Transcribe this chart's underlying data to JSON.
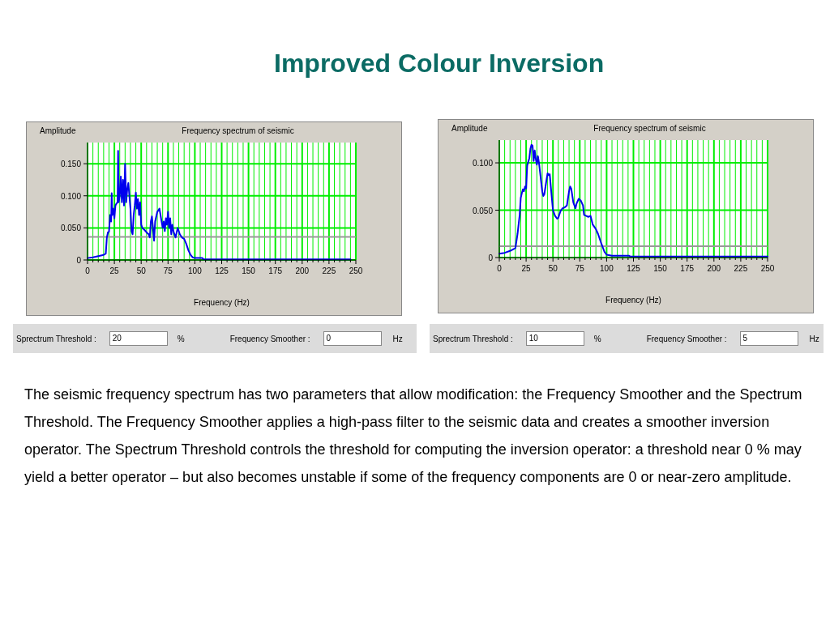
{
  "chart_data": [
    {
      "type": "line",
      "title": "Frequency spectrum of seismic",
      "ylabel": "Amplitude",
      "xlabel": "Frequency (Hz)",
      "grid": true,
      "xlim": [
        0,
        250
      ],
      "ylim": [
        0,
        0.183
      ],
      "xticks": [
        0,
        {
          "value": 5,
          "label": null
        },
        {
          "value": 10,
          "label": null
        },
        {
          "value": 15,
          "label": null
        },
        {
          "value": 20,
          "label": null
        },
        25,
        {
          "value": 30,
          "label": null
        },
        {
          "value": 35,
          "label": null
        },
        {
          "value": 40,
          "label": null
        },
        {
          "value": 45,
          "label": null
        },
        50,
        {
          "value": 55,
          "label": null
        },
        {
          "value": 60,
          "label": null
        },
        {
          "value": 65,
          "label": null
        },
        {
          "value": 70,
          "label": null
        },
        75,
        {
          "value": 80,
          "label": null
        },
        {
          "value": 85,
          "label": null
        },
        {
          "value": 90,
          "label": null
        },
        {
          "value": 95,
          "label": null
        },
        100,
        {
          "value": 105,
          "label": null
        },
        {
          "value": 110,
          "label": null
        },
        {
          "value": 115,
          "label": null
        },
        {
          "value": 120,
          "label": null
        },
        125,
        {
          "value": 130,
          "label": null
        },
        {
          "value": 135,
          "label": null
        },
        {
          "value": 140,
          "label": null
        },
        {
          "value": 145,
          "label": null
        },
        150,
        {
          "value": 155,
          "label": null
        },
        {
          "value": 160,
          "label": null
        },
        {
          "value": 165,
          "label": null
        },
        {
          "value": 170,
          "label": null
        },
        175,
        {
          "value": 180,
          "label": null
        },
        {
          "value": 185,
          "label": null
        },
        {
          "value": 190,
          "label": null
        },
        {
          "value": 195,
          "label": null
        },
        200,
        {
          "value": 205,
          "label": null
        },
        {
          "value": 210,
          "label": null
        },
        {
          "value": 215,
          "label": null
        },
        {
          "value": 220,
          "label": null
        },
        225,
        {
          "value": 230,
          "label": null
        },
        {
          "value": 235,
          "label": null
        },
        {
          "value": 240,
          "label": null
        },
        {
          "value": 245,
          "label": null
        },
        250
      ],
      "yticks": [
        0,
        {
          "value": 0.05,
          "label": "0.050"
        },
        {
          "value": 0.1,
          "label": "0.100"
        },
        {
          "value": 0.15,
          "label": "0.150"
        }
      ],
      "ref_lines": [
        {
          "axis": "y",
          "value": 0.036,
          "color": "#999999"
        }
      ],
      "series": [
        {
          "color": "#0000ee",
          "x": [
            0,
            5,
            10,
            15,
            17,
            18,
            19,
            20,
            21,
            22,
            22.5,
            23,
            24,
            25,
            26,
            27,
            28,
            28.5,
            29,
            30,
            31,
            32,
            33,
            34,
            35,
            36,
            37,
            38,
            39,
            40,
            41,
            42,
            43,
            44,
            45,
            46,
            47,
            48,
            49,
            50,
            51,
            53,
            55,
            57,
            58,
            59,
            60,
            61,
            62,
            63,
            65,
            67,
            69,
            70,
            71,
            72,
            73,
            74,
            75,
            76,
            77,
            78,
            79,
            80,
            82,
            84,
            86,
            88,
            90,
            92,
            94,
            96,
            98,
            100,
            107,
            108,
            150,
            200,
            245
          ],
          "values": [
            0.003,
            0.004,
            0.006,
            0.008,
            0.01,
            0.035,
            0.043,
            0.044,
            0.07,
            0.06,
            0.104,
            0.07,
            0.08,
            0.065,
            0.085,
            0.088,
            0.09,
            0.17,
            0.09,
            0.1,
            0.13,
            0.09,
            0.125,
            0.085,
            0.15,
            0.09,
            0.11,
            0.12,
            0.1,
            0.08,
            0.045,
            0.04,
            0.07,
            0.085,
            0.105,
            0.08,
            0.095,
            0.07,
            0.09,
            0.055,
            0.05,
            0.047,
            0.043,
            0.04,
            0.035,
            0.06,
            0.068,
            0.05,
            0.03,
            0.06,
            0.075,
            0.08,
            0.06,
            0.05,
            0.06,
            0.045,
            0.065,
            0.055,
            0.075,
            0.05,
            0.065,
            0.04,
            0.055,
            0.045,
            0.035,
            0.05,
            0.04,
            0.035,
            0.033,
            0.025,
            0.015,
            0.008,
            0.004,
            0.003,
            0.003,
            0.001,
            0.001,
            0.001,
            0.001
          ]
        }
      ],
      "annotations": [
        "Sprectrum Threshold :",
        "20",
        "%",
        "Frequency Smoother :",
        "0",
        "Hz",
        "Improved Colour Inversion",
        "The seismic frequency spectrum has two parameters that allow modification: the Frequency Smoother and the Spectrum Threshold.  The Frequency Smoother applies a high-pass filter to the seismic data and creates a smoother inversion operator.  The Spectrum Threshold controls the threshold for computing the inversion operator: a threshold near 0 % may yield a better operator – but also becomes unstable if some of the frequency components are 0 or near-zero amplitude."
      ]
    },
    {
      "type": "line",
      "title": "Frequency spectrum of seismic",
      "ylabel": "Amplitude",
      "xlabel": "Frequency (Hz)",
      "grid": true,
      "xlim": [
        0,
        250
      ],
      "ylim": [
        0,
        0.124
      ],
      "xticks": [
        0,
        {
          "value": 5,
          "label": null
        },
        {
          "value": 10,
          "label": null
        },
        {
          "value": 15,
          "label": null
        },
        {
          "value": 20,
          "label": null
        },
        25,
        {
          "value": 30,
          "label": null
        },
        {
          "value": 35,
          "label": null
        },
        {
          "value": 40,
          "label": null
        },
        {
          "value": 45,
          "label": null
        },
        50,
        {
          "value": 55,
          "label": null
        },
        {
          "value": 60,
          "label": null
        },
        {
          "value": 65,
          "label": null
        },
        {
          "value": 70,
          "label": null
        },
        75,
        {
          "value": 80,
          "label": null
        },
        {
          "value": 85,
          "label": null
        },
        {
          "value": 90,
          "label": null
        },
        {
          "value": 95,
          "label": null
        },
        100,
        {
          "value": 105,
          "label": null
        },
        {
          "value": 110,
          "label": null
        },
        {
          "value": 115,
          "label": null
        },
        {
          "value": 120,
          "label": null
        },
        125,
        {
          "value": 130,
          "label": null
        },
        {
          "value": 135,
          "label": null
        },
        {
          "value": 140,
          "label": null
        },
        {
          "value": 145,
          "label": null
        },
        150,
        {
          "value": 155,
          "label": null
        },
        {
          "value": 160,
          "label": null
        },
        {
          "value": 165,
          "label": null
        },
        {
          "value": 170,
          "label": null
        },
        175,
        {
          "value": 180,
          "label": null
        },
        {
          "value": 185,
          "label": null
        },
        {
          "value": 190,
          "label": null
        },
        {
          "value": 195,
          "label": null
        },
        200,
        {
          "value": 205,
          "label": null
        },
        {
          "value": 210,
          "label": null
        },
        {
          "value": 215,
          "label": null
        },
        {
          "value": 220,
          "label": null
        },
        225,
        {
          "value": 230,
          "label": null
        },
        {
          "value": 235,
          "label": null
        },
        {
          "value": 240,
          "label": null
        },
        {
          "value": 245,
          "label": null
        },
        250
      ],
      "yticks": [
        0,
        {
          "value": 0.05,
          "label": "0.050"
        },
        {
          "value": 0.1,
          "label": "0.100"
        }
      ],
      "ref_lines": [
        {
          "axis": "y",
          "value": 0.012,
          "color": "#999999"
        }
      ],
      "series": [
        {
          "color": "#0000ee",
          "x": [
            0,
            5,
            10,
            15,
            17,
            18,
            19,
            20,
            21,
            22,
            23,
            24,
            25,
            26,
            28,
            29,
            30,
            31,
            32,
            33,
            34,
            35,
            36,
            37,
            38,
            40,
            41,
            42,
            44,
            45,
            46,
            47,
            48,
            50,
            52,
            54,
            55,
            57,
            59,
            61,
            63,
            65,
            66,
            67,
            69,
            71,
            72,
            74,
            76,
            78,
            79,
            81,
            83,
            85,
            87,
            90,
            92,
            95,
            98,
            100,
            105,
            110,
            121,
            122,
            150,
            250
          ],
          "values": [
            0.004,
            0.005,
            0.007,
            0.01,
            0.025,
            0.035,
            0.045,
            0.063,
            0.068,
            0.072,
            0.07,
            0.075,
            0.073,
            0.097,
            0.105,
            0.115,
            0.119,
            0.118,
            0.102,
            0.113,
            0.104,
            0.098,
            0.107,
            0.1,
            0.09,
            0.07,
            0.065,
            0.067,
            0.082,
            0.089,
            0.087,
            0.088,
            0.075,
            0.05,
            0.044,
            0.041,
            0.042,
            0.049,
            0.052,
            0.053,
            0.055,
            0.07,
            0.075,
            0.073,
            0.058,
            0.052,
            0.057,
            0.062,
            0.06,
            0.055,
            0.045,
            0.044,
            0.043,
            0.044,
            0.035,
            0.03,
            0.025,
            0.015,
            0.006,
            0.003,
            0.002,
            0.002,
            0.002,
            0.001,
            0.001,
            0.001
          ]
        }
      ],
      "annotations": [
        "Sprectrum Threshold :",
        "10",
        "%",
        "Frequency Smoother :",
        "5",
        "Hz"
      ]
    }
  ]
}
